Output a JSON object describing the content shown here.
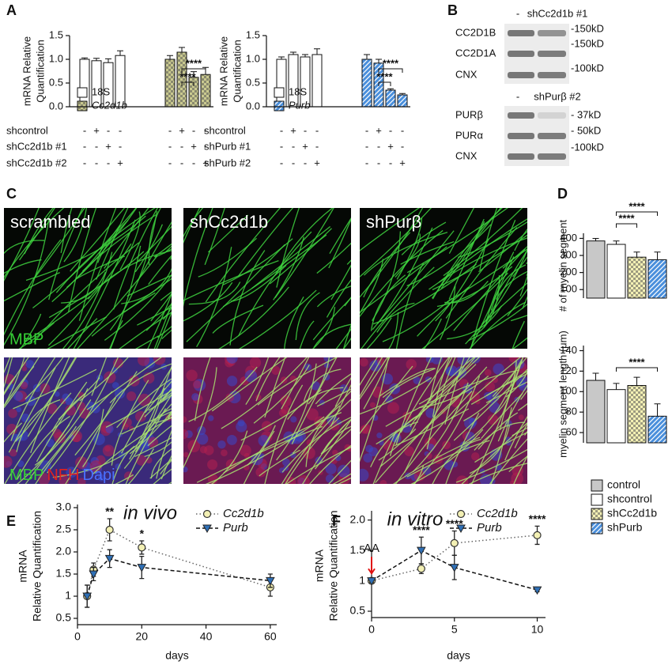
{
  "panel_labels": {
    "a": "A",
    "b": "B",
    "c": "C",
    "d": "D",
    "e": "E",
    "f": "F"
  },
  "chart_data": [
    {
      "type": "bar",
      "ylabel": [
        "mRNA Relative",
        "Quantification"
      ],
      "ylim": [
        0,
        1.5
      ],
      "yticks": [
        {
          "value": 0,
          "label": "0.0"
        },
        {
          "value": 0.5,
          "label": "0.5"
        },
        {
          "value": 1,
          "label": "1.0"
        },
        {
          "value": 1.5,
          "label": "1.5"
        }
      ],
      "series": [
        {
          "name": "18S",
          "color": "#ffffff",
          "values": [
            1.0,
            0.97,
            0.93,
            1.08,
            null,
            null,
            null,
            null
          ],
          "errors": [
            0.03,
            0.05,
            0.08,
            0.1,
            null,
            null,
            null,
            null
          ]
        },
        {
          "name": "Cc2d1b",
          "color": "#c9c98f",
          "pattern": "checker",
          "values": [
            null,
            null,
            null,
            null,
            1.0,
            1.15,
            0.62,
            0.68
          ],
          "errors": [
            null,
            null,
            null,
            null,
            0.08,
            0.1,
            0.12,
            0.15
          ]
        }
      ],
      "rows": [
        {
          "label": "shcontrol",
          "signs": [
            "-",
            "+",
            "-",
            "-",
            "-",
            "+",
            "-",
            "-"
          ]
        },
        {
          "label": "shCc2d1b #1",
          "signs": [
            "-",
            "-",
            "+",
            "-",
            "-",
            "-",
            "+",
            "-"
          ]
        },
        {
          "label": "shCc2d1b #2",
          "signs": [
            "-",
            "-",
            "-",
            "+",
            "-",
            "-",
            "-",
            "+"
          ]
        }
      ],
      "annotations": [
        "****",
        "****"
      ]
    },
    {
      "type": "bar",
      "ylabel": [
        "mRNA Relative",
        "Quantification"
      ],
      "ylim": [
        0,
        1.5
      ],
      "yticks": [
        {
          "value": 0,
          "label": "0.0"
        },
        {
          "value": 0.5,
          "label": "0.5"
        },
        {
          "value": 1,
          "label": "1.0"
        },
        {
          "value": 1.5,
          "label": "1.5"
        }
      ],
      "series": [
        {
          "name": "18S",
          "color": "#ffffff",
          "values": [
            1.0,
            1.1,
            1.05,
            1.1,
            null,
            null,
            null,
            null
          ],
          "errors": [
            0.05,
            0.05,
            0.05,
            0.12,
            null,
            null,
            null,
            null
          ]
        },
        {
          "name": "Purb",
          "color": "#4a8fdc",
          "pattern": "hatch",
          "values": [
            null,
            null,
            null,
            null,
            1.0,
            0.92,
            0.35,
            0.25
          ],
          "errors": [
            null,
            null,
            null,
            null,
            0.1,
            0.08,
            0.03,
            0.03
          ]
        }
      ],
      "rows": [
        {
          "label": "shcontrol",
          "signs": [
            "-",
            "+",
            "-",
            "-",
            "-",
            "+",
            "-",
            "-"
          ]
        },
        {
          "label": "shPurb #1",
          "signs": [
            "-",
            "-",
            "+",
            "-",
            "-",
            "-",
            "+",
            "-"
          ]
        },
        {
          "label": "shPurb #2",
          "signs": [
            "-",
            "-",
            "-",
            "+",
            "-",
            "-",
            "-",
            "+"
          ]
        }
      ],
      "annotations": [
        "****",
        "****"
      ]
    },
    {
      "type": "bar",
      "ylabel": "# of myelin segment",
      "ylim": [
        50,
        430
      ],
      "yticks": [
        100,
        200,
        300,
        400
      ],
      "categories": [
        "control",
        "shcontrol",
        "shCc2d1b",
        "shPurb"
      ],
      "colors": [
        "#c8c8c8",
        "#ffffff",
        "#f3f0b4",
        "#4a8fdc"
      ],
      "patterns": [
        null,
        null,
        "checker",
        "hatch"
      ],
      "values": [
        385,
        365,
        290,
        275
      ],
      "errors": [
        15,
        20,
        30,
        45
      ],
      "annotations": [
        "****",
        "****"
      ]
    },
    {
      "type": "bar",
      "ylabel": "myelin segment length (μm)",
      "ylim": [
        50,
        145
      ],
      "yticks": [
        60,
        80,
        100,
        120,
        140
      ],
      "colors": [
        "#c8c8c8",
        "#ffffff",
        "#f3f0b4",
        "#4a8fdc"
      ],
      "patterns": [
        null,
        null,
        "checker",
        "hatch"
      ],
      "values": [
        111,
        102,
        106,
        76
      ],
      "errors": [
        7,
        6,
        8,
        12
      ],
      "annotations": [
        "****"
      ]
    },
    {
      "type": "line",
      "title": "in vivo",
      "ylabel": [
        "mRNA",
        "Relative Quantification"
      ],
      "xlabel": "days",
      "xlim": [
        0,
        62
      ],
      "xticks": [
        0,
        20,
        40,
        60
      ],
      "ylim": [
        0.5,
        3.0
      ],
      "yticks": [
        0.5,
        1,
        1.5,
        {
          "value": 2,
          "label": "2.0"
        },
        2.5,
        {
          "value": 3,
          "label": "3.0"
        }
      ],
      "x": [
        3,
        5,
        10,
        20,
        60
      ],
      "series": [
        {
          "name": "Cc2d1b",
          "color": "#f3f0b4",
          "line_color": "#666666",
          "marker": "circle",
          "dash": "1.5 3",
          "values": [
            1.0,
            1.6,
            2.5,
            2.1,
            1.2
          ],
          "errors": [
            0.25,
            0.15,
            0.25,
            0.15,
            0.2
          ]
        },
        {
          "name": "Purb",
          "color": "#2f6fb5",
          "line_color": "#111111",
          "marker": "triangle-down",
          "dash": "5 3",
          "values": [
            1.0,
            1.5,
            1.85,
            1.65,
            1.35
          ],
          "errors": [
            0.25,
            0.15,
            0.2,
            0.25,
            0.15
          ]
        }
      ],
      "annotations": [
        {
          "text": "**",
          "x": 10
        },
        {
          "text": "*",
          "x": 20
        }
      ]
    },
    {
      "type": "line",
      "title": "in vitro",
      "ylabel": [
        "mRNA",
        "Relative Quantification"
      ],
      "xlabel": "days",
      "xlim": [
        0,
        10.5
      ],
      "xticks": [
        0,
        5,
        10
      ],
      "ylim": [
        0.5,
        2.1
      ],
      "yticks": [
        0.5,
        1,
        1.5,
        {
          "value": 2,
          "label": "2.0"
        }
      ],
      "x": [
        0,
        3,
        5,
        10
      ],
      "series": [
        {
          "name": "Cc2d1b",
          "color": "#f3f0b4",
          "line_color": "#666666",
          "marker": "circle",
          "dash": "1.5 3",
          "values": [
            1.0,
            1.2,
            1.62,
            1.75
          ],
          "errors": [
            0.03,
            0.08,
            0.2,
            0.15
          ]
        },
        {
          "name": "Purb",
          "color": "#2f6fb5",
          "line_color": "#111111",
          "marker": "triangle-down",
          "dash": "5 3",
          "values": [
            1.0,
            1.5,
            1.22,
            0.85
          ],
          "errors": [
            0.03,
            0.22,
            0.2,
            0.03
          ]
        }
      ],
      "annotations": [
        {
          "text": "AA",
          "x": 0,
          "arrow": true
        },
        {
          "text": "****",
          "x": 3
        },
        {
          "text": "****",
          "x": 5
        },
        {
          "text": "****",
          "x": 10
        }
      ]
    }
  ],
  "blot": {
    "top": {
      "header": [
        "-",
        "shCc2d1b #1"
      ],
      "rows": [
        {
          "label": "CC2D1B",
          "marker": "-150kD"
        },
        {
          "label": "CC2D1A",
          "marker": "-150kD"
        },
        {
          "label": "CNX",
          "marker": "-100kD"
        }
      ]
    },
    "bottom": {
      "header": [
        "-",
        "shPurβ #2"
      ],
      "rows": [
        {
          "label": "PURβ",
          "marker": "- 37kD"
        },
        {
          "label": "PURα",
          "marker": "- 50kD"
        },
        {
          "label": "CNX",
          "marker": "-100kD"
        }
      ]
    }
  },
  "images": {
    "titles": [
      "scrambled",
      "shCc2d1b",
      "shPurβ"
    ],
    "stain_top": "MBP",
    "stain_bottom": [
      "MBP",
      "NFH",
      "Dapi"
    ]
  }
}
